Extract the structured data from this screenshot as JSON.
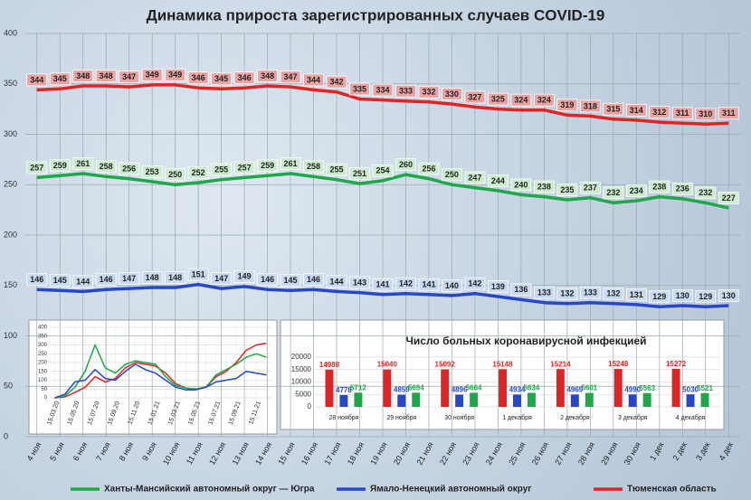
{
  "chart_data": [
    {
      "type": "line",
      "title": "Динамика прироста зарегистрированных случаев COVID-19",
      "categories": [
        "4 ноя",
        "5 ноя",
        "6 ноя",
        "7 ноя",
        "8 ноя",
        "9 ноя",
        "10 ноя",
        "11 ноя",
        "12 ноя",
        "13 ноя",
        "14 ноя",
        "15 ноя",
        "16 ноя",
        "17 ноя",
        "18 ноя",
        "19 ноя",
        "20 ноя",
        "21 ноя",
        "22 ноя",
        "23 ноя",
        "24 ноя",
        "25 ноя",
        "26 ноя",
        "27 ноя",
        "28 ноя",
        "29 ноя",
        "30 ноя",
        "1 дек",
        "2 дек",
        "3 дек",
        "4 дек"
      ],
      "series": [
        {
          "name": "Ханты-Мансийский автономный округ — Югра",
          "color": "#1ea84a",
          "label_fill": "#cdeccf",
          "values": [
            257,
            259,
            261,
            258,
            256,
            253,
            250,
            252,
            255,
            257,
            259,
            261,
            258,
            255,
            251,
            254,
            260,
            256,
            250,
            247,
            244,
            240,
            238,
            235,
            237,
            232,
            234,
            238,
            236,
            232,
            227
          ]
        },
        {
          "name": "Ямало-Ненецкий автономный округ",
          "color": "#2747c8",
          "label_fill": "#c9d9f0",
          "values": [
            146,
            145,
            144,
            146,
            147,
            148,
            148,
            151,
            147,
            149,
            146,
            145,
            146,
            144,
            143,
            141,
            142,
            141,
            140,
            142,
            139,
            136,
            133,
            132,
            133,
            132,
            131,
            129,
            130,
            129,
            130
          ]
        },
        {
          "name": "Тюменская область",
          "color": "#e02424",
          "label_fill": "#eaa3a3",
          "values": [
            344,
            345,
            348,
            348,
            347,
            349,
            349,
            346,
            345,
            346,
            348,
            347,
            344,
            342,
            335,
            334,
            333,
            332,
            330,
            327,
            325,
            324,
            324,
            319,
            318,
            315,
            314,
            312,
            311,
            310,
            311
          ]
        }
      ],
      "ylim": [
        0,
        400
      ],
      "yticks": [
        0,
        50,
        100,
        150,
        200,
        250,
        300,
        350,
        400
      ],
      "grid": true
    },
    {
      "type": "line",
      "categories": [
        "15.03.20",
        null,
        "15.05.20",
        null,
        "15.07.20",
        null,
        "15.09.20",
        null,
        "15.11.20",
        null,
        "15.01.21",
        null,
        "15.03.21",
        null,
        "15.05.21",
        null,
        "15.07.21",
        null,
        "15.09.21",
        null,
        "15.11.21",
        null
      ],
      "series": [
        {
          "color": "#e02424",
          "values": [
            0,
            5,
            30,
            60,
            120,
            90,
            110,
            170,
            200,
            190,
            180,
            140,
            80,
            55,
            50,
            60,
            120,
            150,
            200,
            270,
            300,
            310
          ]
        },
        {
          "color": "#1ea84a",
          "values": [
            0,
            10,
            60,
            150,
            300,
            170,
            140,
            190,
            210,
            200,
            190,
            120,
            70,
            55,
            50,
            60,
            130,
            160,
            190,
            230,
            250,
            230
          ]
        },
        {
          "color": "#2747c8",
          "values": [
            0,
            20,
            90,
            100,
            160,
            110,
            100,
            150,
            190,
            160,
            140,
            100,
            60,
            45,
            45,
            60,
            90,
            100,
            110,
            150,
            140,
            130
          ]
        }
      ],
      "ylim": [
        0,
        400
      ],
      "yticks": [
        0,
        50,
        100,
        150,
        200,
        250,
        300,
        350,
        400
      ],
      "grid": true
    },
    {
      "type": "bar",
      "title": "Число больных коронавирусной инфекцией",
      "categories": [
        "28 ноября",
        "29 ноября",
        "30 ноября",
        "1 декабря",
        "2 декабря",
        "3 декабря",
        "4 декабря"
      ],
      "series": [
        {
          "color": "#e02424",
          "values": [
            14988,
            15040,
            15092,
            15148,
            15214,
            15248,
            15272
          ]
        },
        {
          "color": "#2747c8",
          "values": [
            4778,
            4859,
            4896,
            4934,
            4969,
            4990,
            5030
          ]
        },
        {
          "color": "#1ea84a",
          "values": [
            5712,
            5694,
            5664,
            5634,
            5601,
            5563,
            5521
          ]
        }
      ],
      "ylim": [
        0,
        20000
      ],
      "yticks": [
        0,
        5000,
        10000,
        15000,
        20000
      ],
      "grid": true
    }
  ]
}
